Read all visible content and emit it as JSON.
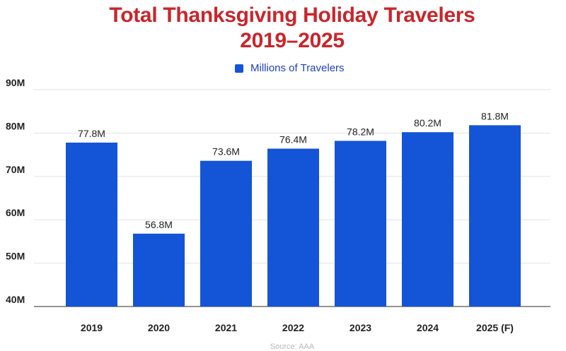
{
  "chart_data": {
    "type": "bar",
    "title_line1": "Total Thanksgiving Holiday Travelers",
    "title_line2": "2019–2025",
    "categories": [
      "2019",
      "2020",
      "2021",
      "2022",
      "2023",
      "2024",
      "2025 (F)"
    ],
    "series": [
      {
        "name": "Millions of Travelers",
        "values": [
          77.8,
          56.8,
          73.6,
          76.4,
          78.2,
          80.2,
          81.8
        ],
        "data_labels": [
          "77.8M",
          "56.8M",
          "73.6M",
          "76.4M",
          "78.2M",
          "80.2M",
          "81.8M"
        ]
      }
    ],
    "y_ticks": [
      40,
      50,
      60,
      70,
      80,
      90
    ],
    "y_tick_labels": [
      "40M",
      "50M",
      "60M",
      "70M",
      "80M",
      "90M"
    ],
    "ylim": [
      40,
      90
    ],
    "grid": true,
    "legend": "top-center",
    "source": "Source: AAA",
    "colors": {
      "bar": "#1454d6",
      "title": "#c8262b",
      "legend_text": "#2140b8"
    }
  }
}
